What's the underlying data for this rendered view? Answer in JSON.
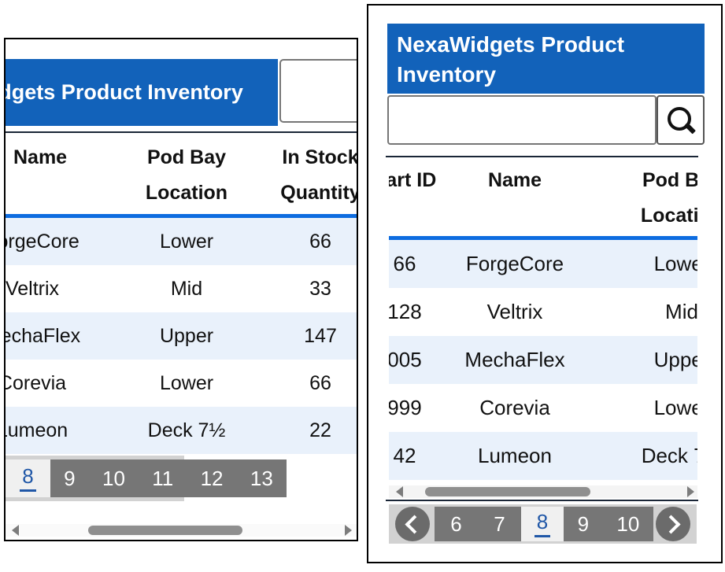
{
  "app": {
    "title": "NexaWidgets Product Inventory"
  },
  "search": {
    "value": "",
    "placeholder": ""
  },
  "columns": {
    "part_id": "Part ID",
    "name": "Name",
    "location_line1": "Pod Bay",
    "location_line2": "Location",
    "qty_line1": "In Stock",
    "qty_line2": "Quantity"
  },
  "rows": [
    {
      "id_visible": "66",
      "name": "ForgeCore",
      "location": "Lower",
      "qty": "66"
    },
    {
      "id_visible": "128",
      "name": "Veltrix",
      "location": "Mid",
      "qty": "33"
    },
    {
      "id_visible": "005",
      "name": "MechaFlex",
      "location": "Upper",
      "qty": "147"
    },
    {
      "id_visible": "999",
      "name": "Corevia",
      "location": "Lower",
      "qty": "66"
    },
    {
      "id_visible": "42",
      "name": "Lumeon",
      "location": "Deck 7½",
      "qty": "22"
    }
  ],
  "left_panel": {
    "pagination": {
      "active": "8",
      "pages_after": [
        "9",
        "10",
        "11",
        "12",
        "13"
      ]
    }
  },
  "right_panel": {
    "pagination": {
      "active": "8",
      "pages_before": [
        "6",
        "7"
      ],
      "pages_after": [
        "9",
        "10"
      ]
    }
  },
  "icons": {
    "search_button": "magnifier-icon",
    "pager_prev": "chevron-left-icon",
    "pager_next": "chevron-right-icon",
    "scrollbar_left": "triangle-left-icon",
    "scrollbar_right": "triangle-right-icon"
  },
  "colors": {
    "title_blue": "#1262ba",
    "divider_blue": "#0d6ce0",
    "row_stripe": "#e9f1fb",
    "pager_dark": "#767676",
    "pager_container": "#d2d2d2",
    "active_page_bg": "#f0f0f0",
    "active_page_text": "#2057a7",
    "table_line_dark": "#1a2637"
  }
}
